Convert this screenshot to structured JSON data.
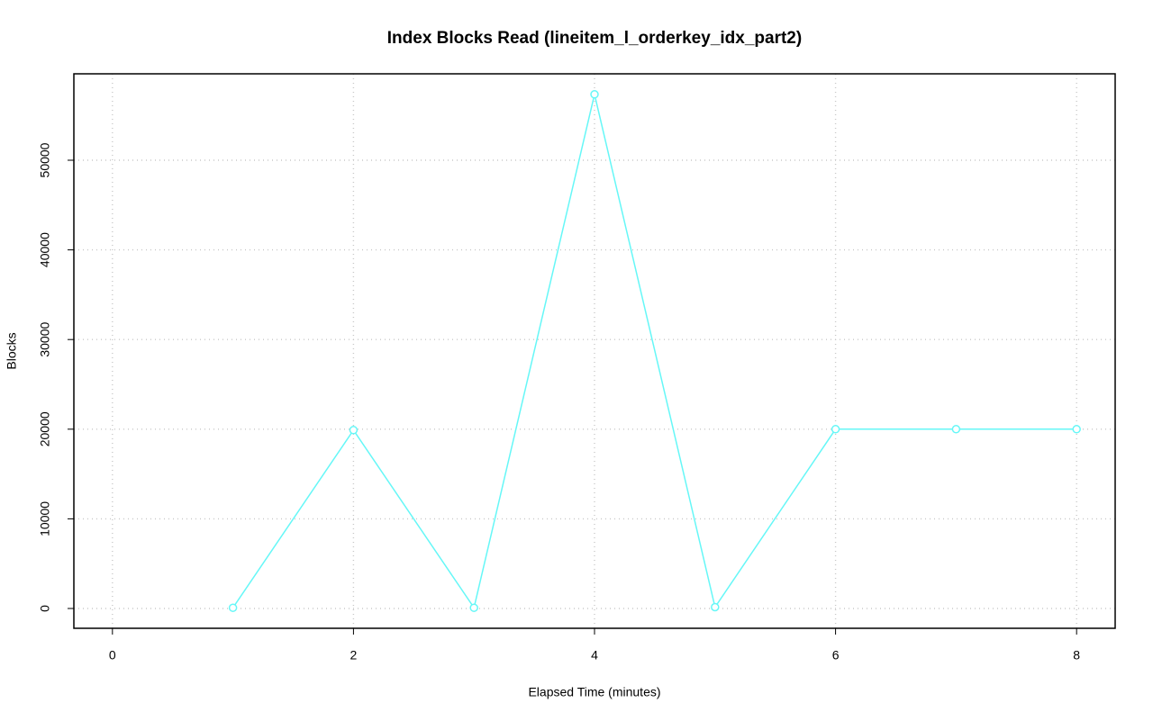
{
  "chart_data": {
    "type": "line",
    "title": "Index Blocks Read (lineitem_l_orderkey_idx_part2)",
    "x_label": "Elapsed Time (minutes)",
    "y_label": "Blocks",
    "x": [
      1,
      2,
      3,
      4,
      5,
      6,
      7,
      8
    ],
    "series": [
      {
        "color": "#66f7f7",
        "values": [
          80,
          19900,
          80,
          57350,
          150,
          20000,
          20000,
          20000
        ]
      }
    ],
    "xlim": [
      -0.32,
      8.32
    ],
    "xticks": [
      0,
      2,
      4,
      6,
      8
    ],
    "ylim": [
      -2209,
      59639
    ],
    "yticks": [
      0,
      10000,
      20000,
      30000,
      40000,
      50000
    ],
    "grid": true
  }
}
